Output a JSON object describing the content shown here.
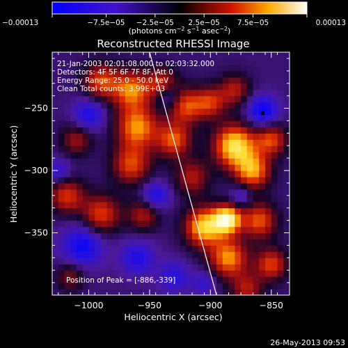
{
  "chart_data": {
    "type": "heatmap",
    "title": "Reconstructed RHESSI Image",
    "xlabel": "Heliocentric X (arcsec)",
    "ylabel": "Heliocentric Y (arcsec)",
    "xlim": [
      -1030,
      -835
    ],
    "ylim": [
      -400,
      -205
    ],
    "xticks": [
      -1000,
      -950,
      -900,
      -850
    ],
    "xtick_labels": [
      "−1000",
      "−950",
      "−900",
      "−850"
    ],
    "yticks": [
      -250,
      -300,
      -350
    ],
    "ytick_labels": [
      "−250",
      "−300",
      "−350"
    ],
    "colorbar": {
      "min": -0.00013,
      "max": 0.00013,
      "ticks": [
        -0.00013,
        -7.5e-05,
        -2.5e-05,
        2.5e-05,
        7.5e-05,
        0.00013
      ],
      "tick_labels": [
        "−0.00013",
        "−7.5e−05",
        "−2.5e−05",
        "2.5e−05",
        "7.5e−05",
        "0.00013"
      ],
      "unit_label": {
        "prefix": "(photons cm",
        "sup1": "−2",
        "mid": " s",
        "sup2": "−1",
        "mid2": " asec",
        "sup3": "−2",
        "suffix": ")"
      }
    },
    "annotations": [
      "21-Jan-2003 02:01:08.000 to 02:03:32.000",
      "Detectors: 4F 5F 6F 7F 8F, Att 0",
      "Energy Range: 25.0 - 50.0 keV",
      "Clean    Total counts: 3.99E+03"
    ],
    "peak_text": "Position of Peak = [-886,-339]",
    "peak": [
      -886,
      -339
    ],
    "marker": [
      -857,
      -254
    ],
    "limb_line": [
      [
        -950,
        -205
      ],
      [
        -895,
        -400
      ]
    ],
    "blobs": [
      {
        "x": -990,
        "y": -228,
        "s": 10,
        "a": 0.8
      },
      {
        "x": -965,
        "y": -235,
        "s": 11,
        "a": 0.95
      },
      {
        "x": -940,
        "y": -230,
        "s": 9,
        "a": 0.7
      },
      {
        "x": -920,
        "y": -248,
        "s": 10,
        "a": 0.8
      },
      {
        "x": -900,
        "y": -245,
        "s": 9,
        "a": 0.7
      },
      {
        "x": -960,
        "y": -265,
        "s": 12,
        "a": 1.0
      },
      {
        "x": -930,
        "y": -275,
        "s": 10,
        "a": 0.85
      },
      {
        "x": -965,
        "y": -295,
        "s": 11,
        "a": 0.8
      },
      {
        "x": -1010,
        "y": -275,
        "s": 9,
        "a": 0.55
      },
      {
        "x": -1018,
        "y": -320,
        "s": 10,
        "a": 0.75
      },
      {
        "x": -990,
        "y": -335,
        "s": 11,
        "a": 0.8
      },
      {
        "x": -955,
        "y": -335,
        "s": 9,
        "a": 0.6
      },
      {
        "x": -915,
        "y": -305,
        "s": 10,
        "a": 0.6
      },
      {
        "x": -880,
        "y": -280,
        "s": 12,
        "a": 1.3
      },
      {
        "x": -865,
        "y": -300,
        "s": 10,
        "a": 1.0
      },
      {
        "x": -850,
        "y": -275,
        "s": 9,
        "a": 0.8
      },
      {
        "x": -880,
        "y": -235,
        "s": 9,
        "a": 0.6
      },
      {
        "x": -905,
        "y": -345,
        "s": 11,
        "a": 1.2
      },
      {
        "x": -886,
        "y": -339,
        "s": 8,
        "a": 1.4
      },
      {
        "x": -885,
        "y": -370,
        "s": 11,
        "a": 1.0
      },
      {
        "x": -860,
        "y": -340,
        "s": 10,
        "a": 0.85
      },
      {
        "x": -850,
        "y": -375,
        "s": 9,
        "a": 0.8
      },
      {
        "x": -870,
        "y": -395,
        "s": 9,
        "a": 0.6
      },
      {
        "x": -1015,
        "y": -385,
        "s": 8,
        "a": 0.5
      },
      {
        "x": -1000,
        "y": -255,
        "s": 9,
        "a": -0.6
      },
      {
        "x": -1005,
        "y": -360,
        "s": 12,
        "a": -0.7
      },
      {
        "x": -960,
        "y": -370,
        "s": 10,
        "a": -0.55
      },
      {
        "x": -930,
        "y": -385,
        "s": 9,
        "a": -0.5
      },
      {
        "x": -935,
        "y": -240,
        "s": 7,
        "a": -0.5
      },
      {
        "x": -857,
        "y": -252,
        "s": 9,
        "a": -0.75
      },
      {
        "x": -875,
        "y": -320,
        "s": 6,
        "a": -0.4
      },
      {
        "x": -945,
        "y": -320,
        "s": 8,
        "a": -0.6
      },
      {
        "x": -1025,
        "y": -300,
        "s": 7,
        "a": -0.45
      },
      {
        "x": -905,
        "y": -390,
        "s": 7,
        "a": -0.4
      }
    ]
  },
  "footer": {
    "timestamp": "26-May-2013 09:53"
  }
}
